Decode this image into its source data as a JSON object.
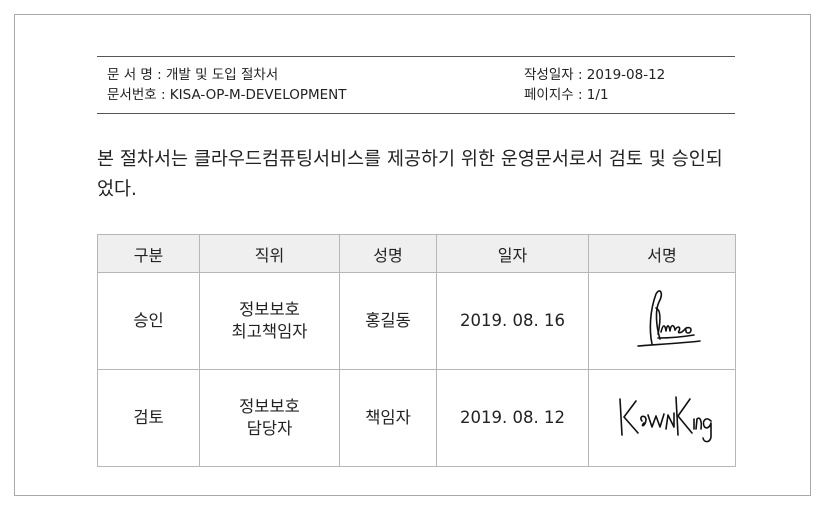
{
  "header": {
    "doc_name_label": "문 서 명 : 개발 및 도입 절차서",
    "doc_number_label": "문서번호 : KISA-OP-M-DEVELOPMENT",
    "created_label": "작성일자 : 2019-08-12",
    "pages_label": "페이지수 : 1/1"
  },
  "intro": "본 절차서는 클라우드컴퓨팅서비스를 제공하기 위한 운영문서로서 검토 및 승인되었다.",
  "table": {
    "headers": [
      "구분",
      "직위",
      "성명",
      "일자",
      "서명"
    ],
    "rows": [
      {
        "category": "승인",
        "position_line1": "정보보호",
        "position_line2": "최고책임자",
        "name": "홍길동",
        "date": "2019. 08. 16",
        "signature_icon": "handwritten-signature"
      },
      {
        "category": "검토",
        "position_line1": "정보보호",
        "position_line2": "담당자",
        "name": "책임자",
        "date": "2019. 08. 12",
        "signature_icon": "handwritten-signature"
      }
    ]
  }
}
